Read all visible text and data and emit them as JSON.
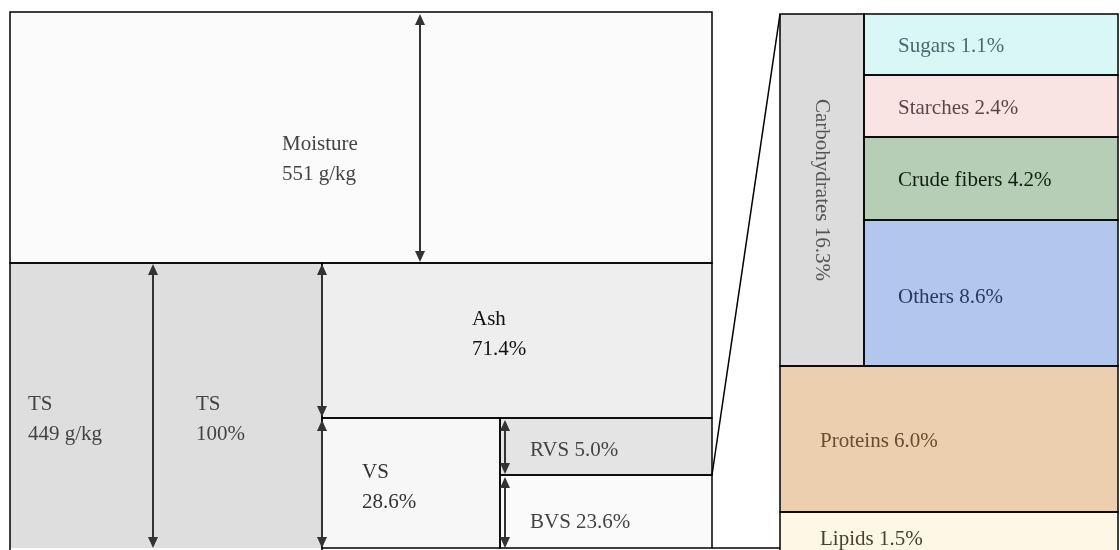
{
  "chart_data": {
    "type": "other",
    "categories": [
      "Moisture",
      "TS",
      "TS",
      "Ash",
      "VS",
      "RVS",
      "BVS",
      "Carbohydrates",
      "Sugars",
      "Starches",
      "Crude fibers",
      "Others",
      "Proteins",
      "Lipids"
    ],
    "values": [
      551,
      449,
      100,
      71.4,
      28.6,
      5.0,
      23.6,
      16.3,
      1.1,
      2.4,
      4.2,
      8.6,
      6.0,
      1.5
    ],
    "value_labels": [
      "551 g/kg",
      "449 g/kg",
      "100%",
      "71.4%",
      "28.6%",
      "5.0%",
      "23.6%",
      "16.3%",
      "1.1%",
      "2.4%",
      "4.2%",
      "8.6%",
      "6.0%",
      "1.5%"
    ],
    "colors": [
      "#fbfbfb",
      "#dedede",
      "#dedede",
      "#eeeeee",
      "#f7f7f7",
      "#e4e4e4",
      "#fafafa",
      "#dcdcdc",
      "#d9f7f7",
      "#f9e3e3",
      "#b6cdb6",
      "#b3c6ee",
      "#eccfae",
      "#fdf8e6"
    ]
  }
}
